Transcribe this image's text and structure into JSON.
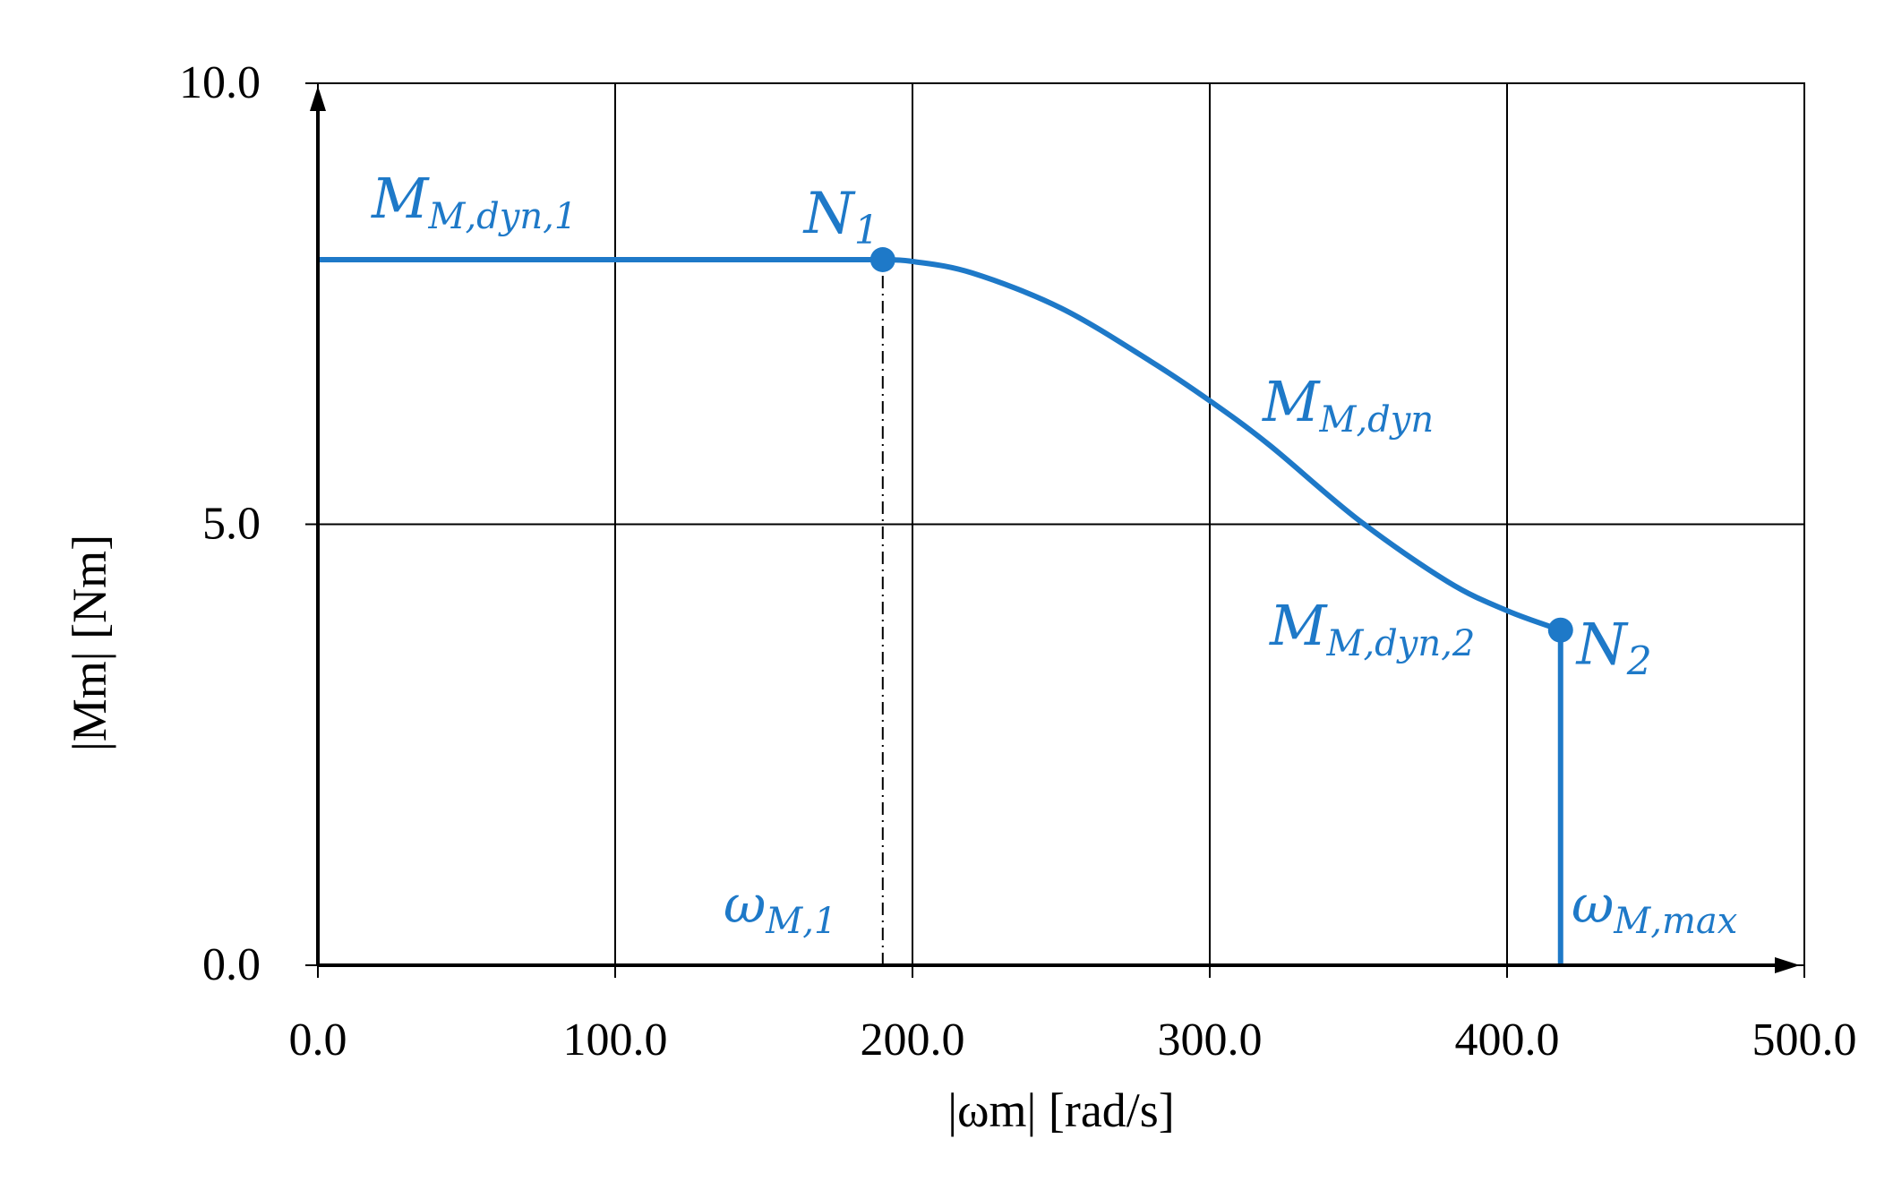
{
  "chart_data": {
    "type": "line",
    "title": "",
    "xlabel": "|ωm|  [rad/s]",
    "ylabel": "|Mm|  [Nm]",
    "xlim": [
      0,
      500
    ],
    "ylim": [
      0,
      10
    ],
    "x_ticks": [
      "0.0",
      "100.0",
      "200.0",
      "300.0",
      "400.0",
      "500.0"
    ],
    "y_ticks": [
      "0.0",
      "5.0",
      "10.0"
    ],
    "x_tick_values": [
      0,
      100,
      200,
      300,
      400,
      500
    ],
    "y_tick_values": [
      0,
      5,
      10
    ],
    "grid": true,
    "color": "#1e79c8",
    "series": [
      {
        "name": "M_M,dyn",
        "x": [
          0,
          190,
          200,
          220,
          250,
          280,
          300,
          320,
          350,
          380,
          400,
          418,
          418
        ],
        "y": [
          8.0,
          8.0,
          7.98,
          7.85,
          7.45,
          6.85,
          6.4,
          5.9,
          5.05,
          4.35,
          4.02,
          3.8,
          0.0
        ]
      }
    ],
    "points": [
      {
        "label": "N",
        "sub": "1",
        "x": 190,
        "y": 8.0
      },
      {
        "label": "N",
        "sub": "2",
        "x": 418,
        "y": 3.8
      }
    ],
    "annotations": [
      {
        "id": "mdyn1",
        "main": "M",
        "sub": "M,dyn,1"
      },
      {
        "id": "mdyn",
        "main": "M",
        "sub": "M,dyn"
      },
      {
        "id": "mdyn2",
        "main": "M",
        "sub": "M,dyn,2"
      },
      {
        "id": "w1",
        "main": "ω",
        "sub": "M,1"
      },
      {
        "id": "wmax",
        "main": "ω",
        "sub": "M,max"
      }
    ],
    "vertical_markers": [
      {
        "x": 190,
        "style": "dash-dot",
        "from_y": 0,
        "to_y": 8.0
      }
    ]
  }
}
